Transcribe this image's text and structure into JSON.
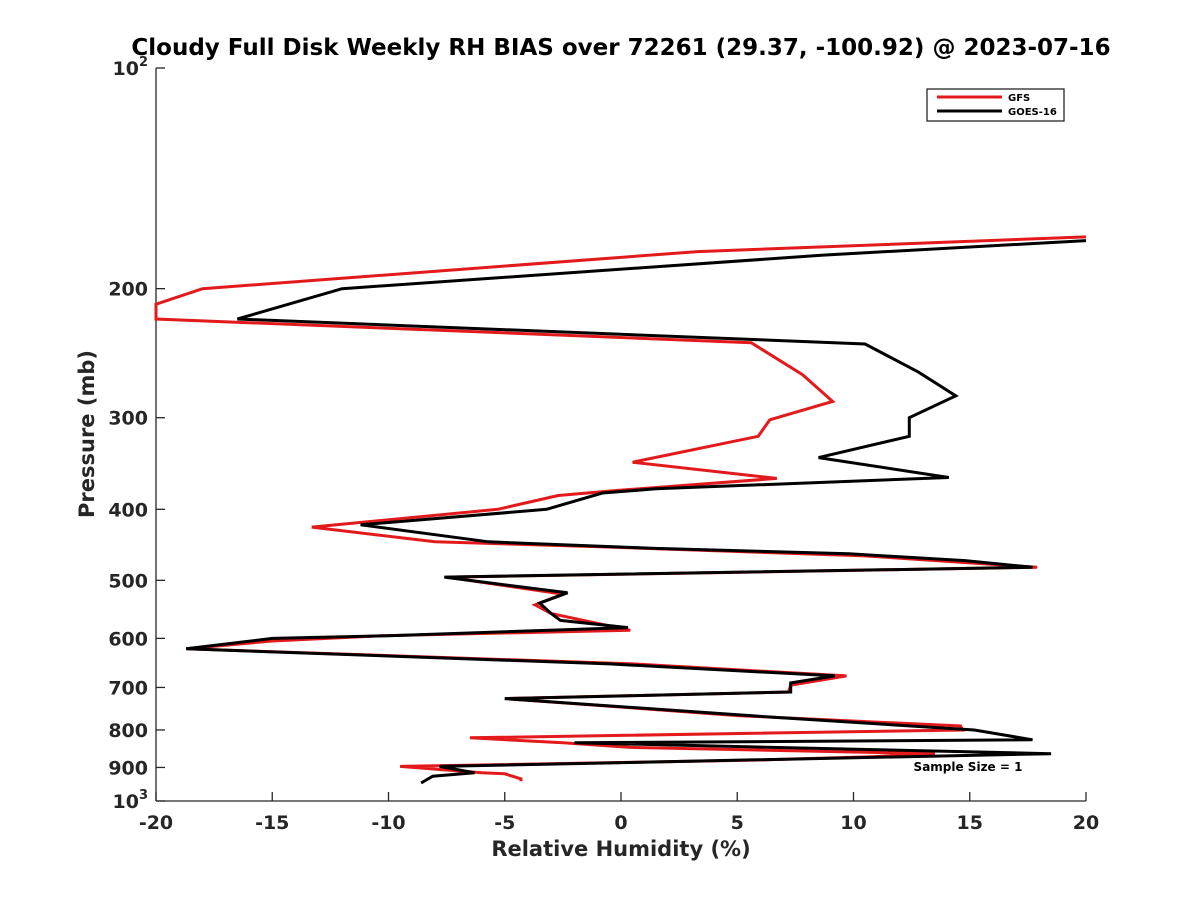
{
  "chart_data": {
    "type": "line",
    "title": "Cloudy Full Disk Weekly RH BIAS over 72261 (29.37, -100.92) @ 2023-07-16",
    "xlabel": "Relative Humidity (%)",
    "ylabel": "Pressure (mb)",
    "xlim": [
      -20,
      20
    ],
    "ylim": [
      100,
      1000
    ],
    "y_scale": "log",
    "y_reversed": true,
    "grid": false,
    "legend_position": "top-right",
    "x_ticks": [
      "-20",
      "-15",
      "-10",
      "-5",
      "0",
      "5",
      "10",
      "15",
      "20"
    ],
    "y_ticks": [
      {
        "value": 100,
        "base": "10",
        "exp": "2"
      },
      {
        "value": 200,
        "label": "200"
      },
      {
        "value": 300,
        "label": "300"
      },
      {
        "value": 400,
        "label": "400"
      },
      {
        "value": 500,
        "label": "500"
      },
      {
        "value": 600,
        "label": "600"
      },
      {
        "value": 700,
        "label": "700"
      },
      {
        "value": 800,
        "label": "800"
      },
      {
        "value": 900,
        "label": "900"
      },
      {
        "value": 1000,
        "base": "10",
        "exp": "3"
      }
    ],
    "annotation": "Sample Size = 1",
    "series": [
      {
        "name": "GFS",
        "color": "#e31a1c",
        "points": [
          [
            20.0,
            170
          ],
          [
            3.3,
            178
          ],
          [
            -18.0,
            200
          ],
          [
            -20.0,
            210
          ],
          [
            -20.0,
            220
          ],
          [
            5.6,
            237
          ],
          [
            7.8,
            262
          ],
          [
            9.1,
            285
          ],
          [
            6.4,
            302
          ],
          [
            5.9,
            318
          ],
          [
            0.5,
            345
          ],
          [
            6.7,
            363
          ],
          [
            -0.2,
            377
          ],
          [
            -2.7,
            383
          ],
          [
            -5.3,
            400
          ],
          [
            -13.3,
            423
          ],
          [
            -8.0,
            443
          ],
          [
            -0.9,
            450
          ],
          [
            10.5,
            463
          ],
          [
            17.9,
            480
          ],
          [
            -7.5,
            495
          ],
          [
            -2.5,
            522
          ],
          [
            -3.7,
            540
          ],
          [
            -3.0,
            555
          ],
          [
            0.4,
            585
          ],
          [
            -10.3,
            595
          ],
          [
            -15.0,
            605
          ],
          [
            -18.7,
            620
          ],
          [
            0.5,
            650
          ],
          [
            9.7,
            675
          ],
          [
            7.3,
            695
          ],
          [
            7.2,
            710
          ],
          [
            -5.0,
            725
          ],
          [
            5.1,
            765
          ],
          [
            14.6,
            790
          ],
          [
            14.7,
            800
          ],
          [
            -6.5,
            820
          ],
          [
            -2.5,
            833
          ],
          [
            0.4,
            845
          ],
          [
            13.5,
            862
          ],
          [
            10.8,
            870
          ],
          [
            5.4,
            880
          ],
          [
            -9.5,
            897
          ],
          [
            -6.0,
            915
          ],
          [
            -5.0,
            918
          ],
          [
            -4.3,
            933
          ],
          [
            -4.3,
            940
          ]
        ]
      },
      {
        "name": "GOES-16",
        "color": "#000000",
        "points": [
          [
            20.0,
            172
          ],
          [
            8.7,
            180
          ],
          [
            -12.0,
            200
          ],
          [
            -16.5,
            220
          ],
          [
            10.5,
            238
          ],
          [
            12.8,
            260
          ],
          [
            14.4,
            280
          ],
          [
            12.4,
            300
          ],
          [
            12.4,
            318
          ],
          [
            8.5,
            340
          ],
          [
            14.1,
            362
          ],
          [
            1.5,
            375
          ],
          [
            -0.8,
            380
          ],
          [
            -3.2,
            400
          ],
          [
            -11.2,
            420
          ],
          [
            -5.7,
            443
          ],
          [
            1.3,
            452
          ],
          [
            9.8,
            460
          ],
          [
            14.8,
            470
          ],
          [
            17.7,
            480
          ],
          [
            -7.6,
            495
          ],
          [
            -2.3,
            520
          ],
          [
            -3.5,
            537
          ],
          [
            -3.0,
            555
          ],
          [
            -2.6,
            567
          ],
          [
            0.3,
            580
          ],
          [
            -10.0,
            595
          ],
          [
            -15.0,
            600
          ],
          [
            -18.7,
            620
          ],
          [
            -0.5,
            650
          ],
          [
            9.2,
            675
          ],
          [
            7.3,
            690
          ],
          [
            7.3,
            710
          ],
          [
            -5.0,
            725
          ],
          [
            6.9,
            770
          ],
          [
            15.2,
            800
          ],
          [
            17.7,
            825
          ],
          [
            -2.0,
            833
          ],
          [
            18.5,
            862
          ],
          [
            -7.8,
            897
          ],
          [
            -6.3,
            915
          ],
          [
            -8.1,
            925
          ],
          [
            -8.6,
            945
          ]
        ]
      }
    ]
  }
}
